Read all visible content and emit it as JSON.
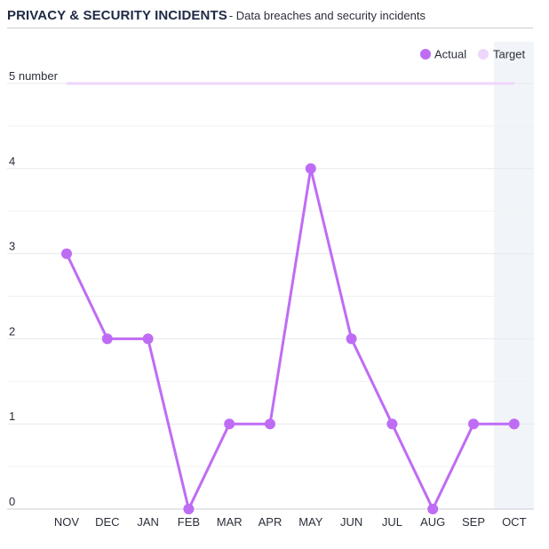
{
  "chart_data": {
    "type": "line",
    "title": "PRIVACY & SECURITY INCIDENTS",
    "subtitle": "- Data breaches and security incidents",
    "categories": [
      "NOV",
      "DEC",
      "JAN",
      "FEB",
      "MAR",
      "APR",
      "MAY",
      "JUN",
      "JUL",
      "AUG",
      "SEP",
      "OCT"
    ],
    "series": [
      {
        "name": "Actual",
        "values": [
          3,
          2,
          2,
          0,
          1,
          1,
          4,
          2,
          1,
          0,
          1,
          1
        ],
        "color": "#bf6cf5"
      },
      {
        "name": "Target",
        "values": [
          5,
          5,
          5,
          5,
          5,
          5,
          5,
          5,
          5,
          5,
          5,
          5
        ],
        "color": "#efd6fb"
      }
    ],
    "y_ticks": [
      "0",
      "1",
      "2",
      "3",
      "4",
      "5 number"
    ],
    "ylim": [
      0,
      5
    ],
    "highlight_category": "OCT",
    "highlight_color": "#f1f4f9",
    "legend_position": "top-right",
    "grid": true
  }
}
